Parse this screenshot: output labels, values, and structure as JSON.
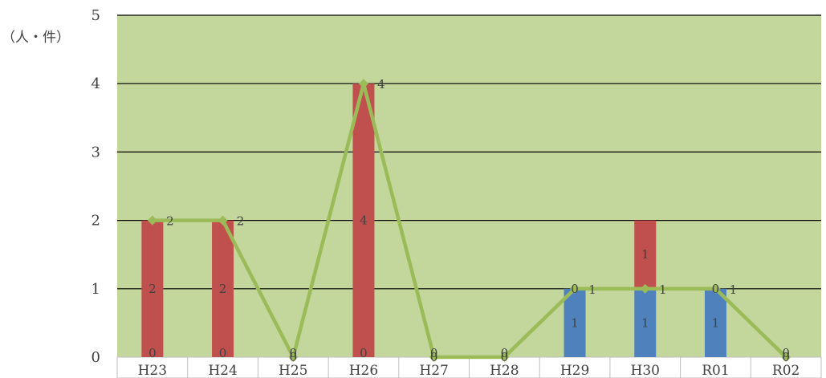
{
  "chart_data": {
    "type": "bar",
    "title": "",
    "unit_label": "（人・件）",
    "xlabel": "",
    "ylabel": "",
    "categories": [
      "H23",
      "H24",
      "H25",
      "H26",
      "H27",
      "H28",
      "H29",
      "H30",
      "R01",
      "R02"
    ],
    "ylim": [
      0,
      5
    ],
    "yticks": [
      0,
      1,
      2,
      3,
      4,
      5
    ],
    "grid": true,
    "legend": "none",
    "stacked": true,
    "series": [
      {
        "type": "bar",
        "color": "#4f81bd",
        "values": [
          0,
          0,
          0,
          0,
          0,
          0,
          1,
          1,
          1,
          0
        ],
        "data_labels": [
          "0",
          "0",
          "0",
          "0",
          "0",
          "0",
          "1",
          "1",
          "1",
          "0"
        ]
      },
      {
        "type": "bar",
        "color": "#c0504d",
        "values": [
          2,
          2,
          0,
          4,
          0,
          0,
          0,
          1,
          0,
          0
        ],
        "data_labels": [
          "2",
          "2",
          "",
          "4",
          "",
          "",
          "0",
          "1",
          "0",
          ""
        ]
      },
      {
        "type": "line",
        "color": "#9bbb59",
        "values": [
          2,
          2,
          0,
          4,
          0,
          0,
          1,
          1,
          1,
          0
        ],
        "data_labels": [
          "2",
          "2",
          "0",
          "4",
          "0",
          "0",
          "1",
          "1",
          "1",
          "0"
        ]
      }
    ],
    "colors": {
      "plot_background": "#c3d69b",
      "gridline": "#000000",
      "category_strip": "#ffffff",
      "text": "#404040"
    }
  }
}
